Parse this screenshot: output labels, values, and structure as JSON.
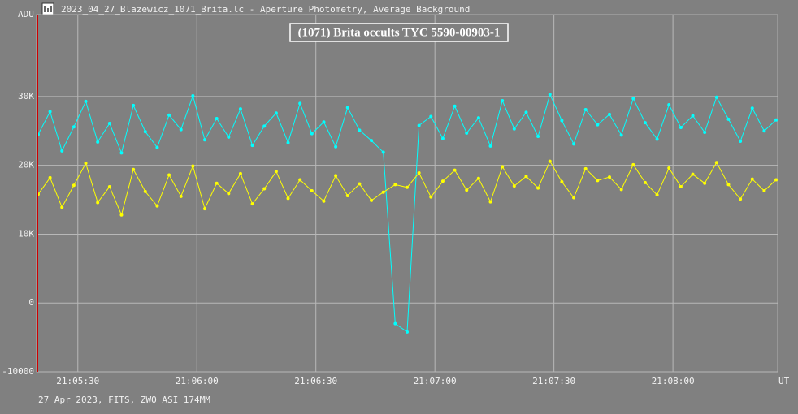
{
  "window_title": "2023_04_27_Blazewicz_1071_Brita.lc - Aperture Photometry, Average Background",
  "footer": "27 Apr 2023, FITS, ZWO ASI 174MM",
  "chart_data": {
    "type": "line",
    "title": "(1071) Brita occults TYC 5590-00903-1",
    "y_label": "ADU",
    "x_label": "UT",
    "xlim": [
      75919.6,
      76106.4
    ],
    "xticks": [
      {
        "value": 75930,
        "label": "21:05:30"
      },
      {
        "value": 75960,
        "label": "21:06:00"
      },
      {
        "value": 75990,
        "label": "21:06:30"
      },
      {
        "value": 76020,
        "label": "21:07:00"
      },
      {
        "value": 76050,
        "label": "21:07:30"
      },
      {
        "value": 76080,
        "label": "21:08:00"
      }
    ],
    "ylim": [
      -10000,
      41900
    ],
    "yticks": [
      -10000,
      0,
      {
        "value": 10000,
        "label": "10K"
      },
      {
        "value": 20000,
        "label": "20K"
      },
      {
        "value": 30000,
        "label": "30K"
      }
    ],
    "grid": true,
    "x": [
      75920,
      75923,
      75926,
      75929,
      75932,
      75935,
      75938,
      75941,
      75944,
      75947,
      75950,
      75953,
      75956,
      75959,
      75962,
      75965,
      75968,
      75971,
      75974,
      75977,
      75980,
      75983,
      75986,
      75989,
      75992,
      75995,
      75998,
      76001,
      76004,
      76007,
      76010,
      76013,
      76016,
      76019,
      76022,
      76025,
      76028,
      76031,
      76034,
      76037,
      76040,
      76043,
      76046,
      76049,
      76052,
      76055,
      76058,
      76061,
      76064,
      76067,
      76070,
      76073,
      76076,
      76079,
      76082,
      76085,
      76088,
      76091,
      76094,
      76097,
      76100,
      76103,
      76106
    ],
    "series": [
      {
        "color": "#00ffff",
        "values": [
          24500,
          27800,
          22100,
          25600,
          29300,
          23400,
          26100,
          21800,
          28700,
          24900,
          22600,
          27300,
          25200,
          30100,
          23700,
          26800,
          24100,
          28200,
          22900,
          25700,
          27600,
          23300,
          29000,
          24600,
          26300,
          22700,
          28400,
          25100,
          23600,
          21900,
          -3000,
          -4200,
          25800,
          27100,
          23900,
          28600,
          24700,
          26900,
          22800,
          29400,
          25300,
          27700,
          24200,
          30300,
          26500,
          23100,
          28100,
          25900,
          27400,
          24400,
          29700,
          26200,
          23800,
          28800,
          25500,
          27200,
          24800,
          29900,
          26700,
          23500,
          28300,
          25000,
          26600
        ]
      },
      {
        "color": "#ffff00",
        "values": [
          15800,
          18200,
          13900,
          17100,
          20300,
          14600,
          16900,
          12800,
          19400,
          16200,
          14100,
          18600,
          15500,
          19900,
          13700,
          17400,
          15900,
          18800,
          14400,
          16600,
          19100,
          15200,
          17900,
          16300,
          14800,
          18500,
          15600,
          17300,
          14900,
          16100,
          17200,
          16800,
          18900,
          15400,
          17700,
          19300,
          16400,
          18100,
          14700,
          19800,
          17000,
          18400,
          16700,
          20600,
          17600,
          15300,
          19500,
          17800,
          18300,
          16500,
          20100,
          17500,
          15700,
          19600,
          16900,
          18700,
          17400,
          20400,
          17200,
          15100,
          18000,
          16300,
          17900
        ]
      }
    ]
  }
}
